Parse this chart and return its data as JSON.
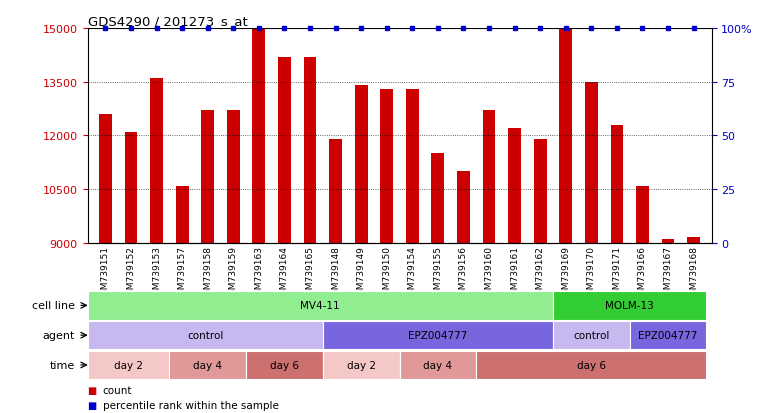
{
  "title": "GDS4290 / 201273_s_at",
  "samples": [
    "GSM739151",
    "GSM739152",
    "GSM739153",
    "GSM739157",
    "GSM739158",
    "GSM739159",
    "GSM739163",
    "GSM739164",
    "GSM739165",
    "GSM739148",
    "GSM739149",
    "GSM739150",
    "GSM739154",
    "GSM739155",
    "GSM739156",
    "GSM739160",
    "GSM739161",
    "GSM739162",
    "GSM739169",
    "GSM739170",
    "GSM739171",
    "GSM739166",
    "GSM739167",
    "GSM739168"
  ],
  "counts": [
    12600,
    12100,
    13600,
    10600,
    12700,
    12700,
    15000,
    14200,
    14200,
    11900,
    13400,
    13300,
    13300,
    11500,
    11000,
    12700,
    12200,
    11900,
    15000,
    13500,
    12300,
    10600,
    9100,
    9150
  ],
  "ymin": 9000,
  "ymax": 15000,
  "yticks": [
    9000,
    10500,
    12000,
    13500,
    15000
  ],
  "right_yticks": [
    0,
    25,
    50,
    75,
    100
  ],
  "bar_color": "#cc0000",
  "dot_color": "#0000cc",
  "cell_line_row": [
    {
      "label": "MV4-11",
      "start": 0,
      "end": 18,
      "color": "#90ee90"
    },
    {
      "label": "MOLM-13",
      "start": 18,
      "end": 24,
      "color": "#32cd32"
    }
  ],
  "agent_row": [
    {
      "label": "control",
      "start": 0,
      "end": 9,
      "color": "#c8b8f0"
    },
    {
      "label": "EPZ004777",
      "start": 9,
      "end": 18,
      "color": "#7766dd"
    },
    {
      "label": "control",
      "start": 18,
      "end": 21,
      "color": "#c8b8f0"
    },
    {
      "label": "EPZ004777",
      "start": 21,
      "end": 24,
      "color": "#7766dd"
    }
  ],
  "time_row": [
    {
      "label": "day 2",
      "start": 0,
      "end": 3,
      "color": "#f5c8c8"
    },
    {
      "label": "day 4",
      "start": 3,
      "end": 6,
      "color": "#e09898"
    },
    {
      "label": "day 6",
      "start": 6,
      "end": 9,
      "color": "#cc7070"
    },
    {
      "label": "day 2",
      "start": 9,
      "end": 12,
      "color": "#f5c8c8"
    },
    {
      "label": "day 4",
      "start": 12,
      "end": 15,
      "color": "#e09898"
    },
    {
      "label": "day 6",
      "start": 15,
      "end": 24,
      "color": "#cc7070"
    }
  ],
  "row_labels": [
    "cell line",
    "agent",
    "time"
  ],
  "legend_count_color": "#cc0000",
  "legend_dot_color": "#0000cc",
  "xtick_bg": "#d0d0d0"
}
